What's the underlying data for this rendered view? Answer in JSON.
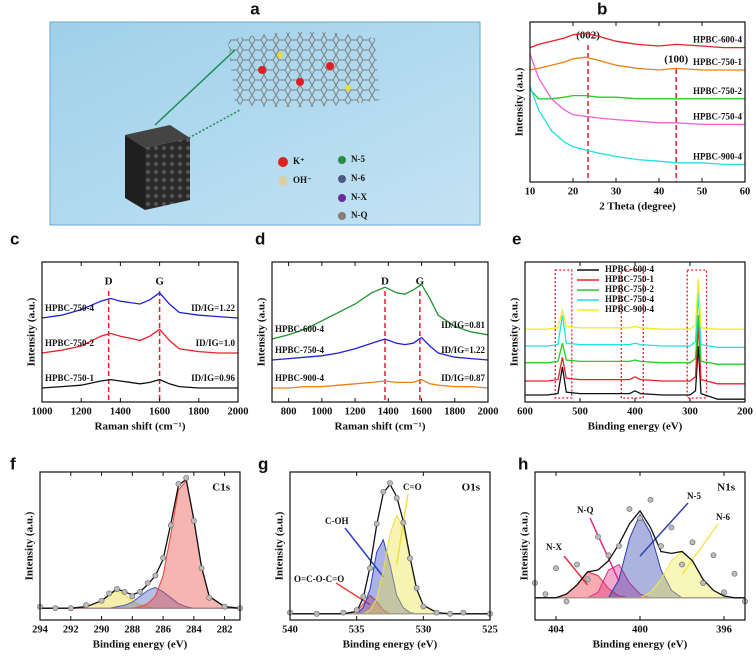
{
  "illustration": {
    "label": "a",
    "legend": [
      "K⁺",
      "OH⁻",
      "N-5",
      "N-6",
      "N-X",
      "N-Q"
    ]
  },
  "chart_data": [
    {
      "type": "line",
      "label": "b",
      "xlabel": "2 Theta (degree)",
      "ylabel": "Intensity (a.u.)",
      "legend": "inline-right",
      "xlim": [
        10,
        60
      ],
      "xticks": [
        10,
        20,
        30,
        40,
        50,
        60
      ],
      "ylim": [
        0,
        100
      ],
      "x": [
        10,
        12,
        15,
        18,
        20,
        23,
        26,
        30,
        35,
        40,
        44,
        50,
        55,
        60
      ],
      "annotations": [
        {
          "text": "(002)",
          "x": 23.5
        },
        {
          "text": "(100)",
          "x": 44
        }
      ],
      "vline_color": "#e8202a",
      "series": [
        {
          "name": "HPBC-600-4",
          "color": "#e8202a",
          "values": [
            84,
            86,
            88,
            90,
            92,
            93,
            91,
            88,
            86,
            85,
            86,
            85,
            84,
            84
          ]
        },
        {
          "name": "HPBC-750-1",
          "color": "#f08010",
          "values": [
            70,
            71,
            73,
            75,
            77,
            78,
            76,
            73,
            71,
            70,
            71,
            70,
            70,
            70
          ]
        },
        {
          "name": "HPBC-750-2",
          "color": "#20d020",
          "values": [
            58,
            52,
            52,
            53,
            54,
            54,
            53,
            53,
            52,
            52,
            52,
            52,
            52,
            52
          ]
        },
        {
          "name": "HPBC-750-4",
          "color": "#f060d8",
          "values": [
            80,
            65,
            52,
            45,
            42,
            41,
            40,
            39,
            38,
            37,
            37,
            36,
            36,
            36
          ]
        },
        {
          "name": "HPBC-900-4",
          "color": "#20e0e0",
          "values": [
            60,
            45,
            32,
            25,
            22,
            20,
            18,
            16,
            14,
            13,
            12,
            12,
            11,
            11
          ]
        }
      ]
    },
    {
      "type": "line",
      "label": "c",
      "xlabel": "Raman shift (cm⁻¹)",
      "ylabel": "Intensity (a.u.)",
      "legend": "inline-left",
      "xlim": [
        1000,
        2000
      ],
      "xticks": [
        1000,
        1200,
        1400,
        1600,
        1800,
        2000
      ],
      "ylim": [
        0,
        100
      ],
      "x": [
        1000,
        1100,
        1200,
        1300,
        1350,
        1400,
        1500,
        1550,
        1600,
        1650,
        1700,
        1800,
        1900,
        2000
      ],
      "annotations": [
        {
          "text": "D",
          "x": 1340
        },
        {
          "text": "G",
          "x": 1600
        }
      ],
      "vline_color": "#e8202a",
      "series": [
        {
          "name": "HPBC-750-4",
          "color": "#2020e0",
          "ratio_label": "ID/IG=1.22",
          "values": [
            60,
            62,
            66,
            72,
            74,
            72,
            70,
            73,
            78,
            70,
            64,
            62,
            61,
            60
          ]
        },
        {
          "name": "HPBC-750-2",
          "color": "#e8202a",
          "ratio_label": "ID/IG=1.0",
          "values": [
            35,
            37,
            40,
            47,
            49,
            47,
            44,
            47,
            52,
            44,
            38,
            36,
            35,
            35
          ]
        },
        {
          "name": "HPBC-750-1",
          "color": "#111111",
          "ratio_label": "ID/IG=0.96",
          "values": [
            10,
            11,
            12,
            15,
            16,
            15,
            13,
            14,
            16,
            13,
            11,
            10,
            10,
            10
          ]
        }
      ]
    },
    {
      "type": "line",
      "label": "d",
      "xlabel": "Raman shift (cm⁻¹)",
      "ylabel": "Intensity (a.u.)",
      "legend": "inline-left",
      "xlim": [
        700,
        2000
      ],
      "xticks": [
        800,
        1000,
        1200,
        1400,
        1600,
        1800,
        2000
      ],
      "ylim": [
        0,
        100
      ],
      "x": [
        700,
        800,
        900,
        1000,
        1100,
        1200,
        1300,
        1380,
        1450,
        1500,
        1550,
        1600,
        1650,
        1700,
        1800,
        1900,
        2000
      ],
      "annotations": [
        {
          "text": "D",
          "x": 1380
        },
        {
          "text": "G",
          "x": 1590
        }
      ],
      "vline_color": "#e8202a",
      "series": [
        {
          "name": "HPBC-600-4",
          "color": "#20902a",
          "ratio_label": "ID/IG=0.81",
          "values": [
            45,
            48,
            52,
            58,
            64,
            70,
            78,
            82,
            78,
            77,
            80,
            84,
            74,
            62,
            54,
            50,
            48
          ]
        },
        {
          "name": "HPBC-750-4",
          "color": "#2020e0",
          "ratio_label": "ID/IG=1.22",
          "values": [
            30,
            31,
            32,
            33,
            35,
            38,
            42,
            45,
            42,
            41,
            42,
            46,
            40,
            35,
            32,
            31,
            30
          ]
        },
        {
          "name": "HPBC-900-4",
          "color": "#f08010",
          "ratio_label": "ID/IG=0.87",
          "values": [
            10,
            10,
            11,
            11,
            12,
            13,
            14,
            15,
            14,
            14,
            14,
            16,
            13,
            12,
            11,
            11,
            10
          ]
        }
      ]
    },
    {
      "type": "line",
      "label": "e",
      "xlabel": "Binding energy (eV)",
      "ylabel": "Intensity (a.u.)",
      "legend": "upper center",
      "xlim": [
        600,
        200
      ],
      "xticks": [
        600,
        500,
        400,
        300,
        200
      ],
      "ylim": [
        0,
        100
      ],
      "x": [
        600,
        560,
        540,
        532,
        525,
        500,
        450,
        410,
        400,
        390,
        350,
        300,
        290,
        285,
        280,
        250,
        200
      ],
      "highlight_ranges": [
        [
          545,
          515
        ],
        [
          425,
          385
        ],
        [
          305,
          270
        ]
      ],
      "highlight_color": "#e8202a",
      "series": [
        {
          "name": "HPBC-600-4",
          "color": "#111111",
          "values": [
            5,
            5,
            6,
            25,
            7,
            6,
            6,
            6,
            8,
            6,
            5,
            5,
            8,
            40,
            6,
            2,
            2
          ]
        },
        {
          "name": "HPBC-750-1",
          "color": "#e8202a",
          "values": [
            15,
            15,
            16,
            32,
            17,
            16,
            16,
            16,
            18,
            16,
            15,
            15,
            18,
            55,
            16,
            13,
            13
          ]
        },
        {
          "name": "HPBC-750-2",
          "color": "#20d020",
          "values": [
            28,
            28,
            29,
            42,
            30,
            29,
            29,
            29,
            30,
            29,
            28,
            28,
            31,
            62,
            29,
            27,
            27
          ]
        },
        {
          "name": "HPBC-750-4",
          "color": "#20e0e0",
          "values": [
            40,
            40,
            41,
            62,
            42,
            41,
            41,
            41,
            42,
            41,
            40,
            40,
            43,
            78,
            41,
            39,
            39
          ]
        },
        {
          "name": "HPBC-900-4",
          "color": "#f0f020",
          "values": [
            52,
            52,
            53,
            66,
            54,
            53,
            53,
            53,
            54,
            53,
            52,
            52,
            55,
            88,
            53,
            52,
            52
          ]
        }
      ]
    },
    {
      "type": "fit",
      "label": "f",
      "title": "C1s",
      "xlabel": "Binding energy (eV)",
      "ylabel": "Intensity (a.u.)",
      "xlim": [
        294,
        281
      ],
      "xticks": [
        294,
        292,
        290,
        288,
        286,
        284,
        282
      ],
      "ylim": [
        0,
        100
      ],
      "x": [
        294,
        293,
        292,
        291,
        290,
        289.5,
        289,
        288.5,
        288,
        287.5,
        287,
        286.5,
        286,
        285.5,
        285,
        284.5,
        284,
        283.5,
        283,
        282,
        281
      ],
      "raw": [
        9,
        8,
        8,
        10,
        13,
        18,
        21,
        19,
        16,
        19,
        25,
        30,
        42,
        64,
        92,
        96,
        67,
        35,
        15,
        9,
        8
      ],
      "envelope": [
        8,
        8,
        8,
        9,
        13,
        17,
        21,
        19,
        17,
        19,
        24,
        30,
        41,
        65,
        91,
        95,
        68,
        36,
        16,
        9,
        8
      ],
      "background": [
        8,
        8,
        8,
        8,
        8,
        8,
        8,
        8,
        8,
        8,
        8,
        8,
        8,
        8,
        8,
        8,
        8,
        8,
        8,
        8,
        8
      ],
      "series": [
        {
          "color": "#e8d830",
          "values": [
            8,
            8,
            8,
            9,
            13,
            17,
            20,
            17,
            13,
            10,
            9,
            8,
            8,
            8,
            8,
            8,
            8,
            8,
            8,
            8,
            8
          ]
        },
        {
          "color": "#4a5db8",
          "values": [
            8,
            8,
            8,
            8,
            8,
            8,
            9,
            10,
            12,
            16,
            20,
            22,
            19,
            15,
            11,
            9,
            8,
            8,
            8,
            8,
            8
          ]
        },
        {
          "color": "#e8453c",
          "values": [
            8,
            8,
            8,
            8,
            8,
            8,
            8,
            8,
            8,
            9,
            11,
            16,
            30,
            58,
            88,
            94,
            68,
            36,
            16,
            9,
            8
          ]
        }
      ]
    },
    {
      "type": "fit",
      "label": "g",
      "title": "O1s",
      "xlabel": "Binding energy (eV)",
      "ylabel": "Intensity (a.u.)",
      "xlim": [
        540,
        525
      ],
      "xticks": [
        540,
        535,
        530,
        525
      ],
      "ylim": [
        0,
        120
      ],
      "x": [
        540,
        538,
        536,
        535,
        534.5,
        534,
        533.5,
        533,
        532.5,
        532,
        531.5,
        531,
        530.5,
        530,
        529,
        528,
        527,
        525
      ],
      "raw": [
        6,
        5,
        6,
        8,
        19,
        42,
        78,
        104,
        111,
        99,
        79,
        50,
        26,
        11,
        6,
        5,
        6,
        5
      ],
      "envelope": [
        5,
        5,
        5,
        7,
        18,
        43,
        77,
        103,
        110,
        100,
        80,
        51,
        25,
        12,
        6,
        5,
        5,
        5
      ],
      "background": [
        5,
        5,
        5,
        5,
        5,
        5,
        5,
        5,
        5,
        5,
        5,
        5,
        5,
        5,
        5,
        5,
        5,
        5
      ],
      "series": [
        {
          "name": "O=C-O-C=O",
          "color": "#e8453c",
          "values": [
            5,
            5,
            5,
            7,
            13,
            20,
            15,
            8,
            5,
            5,
            5,
            5,
            5,
            5,
            5,
            5,
            5,
            5
          ]
        },
        {
          "name": "C-OH",
          "color": "#2b3fc4",
          "values": [
            5,
            5,
            5,
            5,
            10,
            25,
            55,
            65,
            45,
            20,
            10,
            6,
            5,
            5,
            5,
            5,
            5,
            5
          ]
        },
        {
          "name": "C=O",
          "color": "#ece040",
          "values": [
            5,
            5,
            5,
            5,
            5,
            8,
            17,
            40,
            70,
            85,
            75,
            50,
            25,
            12,
            6,
            5,
            5,
            5
          ]
        }
      ]
    },
    {
      "type": "fit",
      "label": "h",
      "title": "N1s",
      "xlabel": "Binding energy (eV)",
      "ylabel": "Intensity (a.u.)",
      "xlim": [
        405,
        395
      ],
      "xticks": [
        404,
        400,
        396
      ],
      "ylim": [
        0,
        80
      ],
      "x": [
        405,
        404.5,
        404,
        403.5,
        403,
        402.5,
        402,
        401.5,
        401,
        400.5,
        400,
        399.5,
        399,
        398.5,
        398,
        397.5,
        397,
        396.5,
        396,
        395.5,
        395
      ],
      "raw": [
        20,
        14,
        28,
        10,
        30,
        22,
        45,
        35,
        40,
        60,
        55,
        65,
        40,
        50,
        30,
        42,
        20,
        35,
        15,
        25,
        10
      ],
      "envelope": [
        12,
        12,
        12,
        14,
        19,
        26,
        27,
        32,
        41,
        52,
        59,
        50,
        37,
        36,
        37,
        32,
        22,
        16,
        13,
        12,
        12
      ],
      "background": [
        12,
        12,
        12,
        12,
        12,
        12,
        12,
        12,
        12,
        12,
        12,
        12,
        12,
        12,
        12,
        12,
        12,
        12,
        12,
        12,
        12
      ],
      "series": [
        {
          "name": "N-X",
          "color": "#e8303a",
          "values": [
            12,
            12,
            12,
            14,
            19,
            26,
            24,
            17,
            13,
            12,
            12,
            12,
            12,
            12,
            12,
            12,
            12,
            12,
            12,
            12,
            12
          ]
        },
        {
          "name": "N-Q",
          "color": "#e0308a",
          "values": [
            12,
            12,
            12,
            12,
            12,
            12,
            15,
            27,
            30,
            20,
            14,
            12,
            12,
            12,
            12,
            12,
            12,
            12,
            12,
            12,
            12
          ]
        },
        {
          "name": "N-5",
          "color": "#3040b0",
          "values": [
            12,
            12,
            12,
            12,
            12,
            12,
            12,
            12,
            22,
            44,
            57,
            47,
            27,
            16,
            12,
            12,
            12,
            12,
            12,
            12,
            12
          ]
        },
        {
          "name": "N-6",
          "color": "#f0e850",
          "values": [
            12,
            12,
            12,
            12,
            12,
            12,
            12,
            12,
            12,
            12,
            12,
            15,
            22,
            32,
            37,
            32,
            22,
            16,
            13,
            12,
            12
          ]
        }
      ]
    }
  ]
}
